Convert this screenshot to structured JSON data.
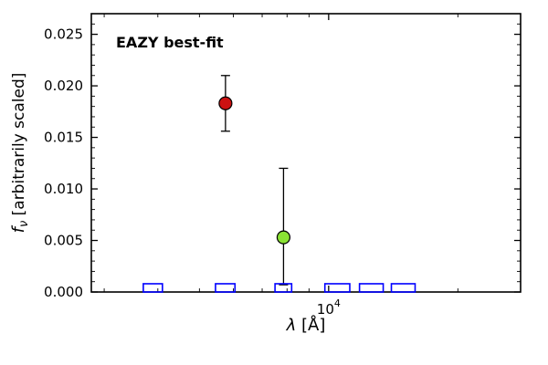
{
  "figure": {
    "background": "#ffffff"
  },
  "chart_data": {
    "type": "scatter",
    "title": "",
    "annotation": {
      "text": "EAZY best-fit",
      "color": "#ee0000"
    },
    "xlabel": {
      "symbol": "λ",
      "unit": "[Å]"
    },
    "ylabel": {
      "symbol": "f",
      "subscript": "ν",
      "rest": "[arbitrarily scaled]"
    },
    "x_scale": "log",
    "xlim": [
      2800,
      28000
    ],
    "ylim": [
      0,
      0.027
    ],
    "yticks": [
      0,
      0.005,
      0.01,
      0.015,
      0.02,
      0.025
    ],
    "ytick_minor_step": 0.001,
    "ytick_decimals": 3,
    "xtick_major": {
      "value": 10000,
      "label_base": "10",
      "label_exp": "4"
    },
    "xtick_minors": [
      3000,
      4000,
      5000,
      6000,
      7000,
      8000,
      9000,
      20000
    ],
    "grid": false,
    "legend": null,
    "series": [
      {
        "name": "photometry-points",
        "type": "errorbar",
        "marker": "circle",
        "edge_color": "#000000",
        "errorbar_color": "#000000",
        "points": [
          {
            "x": 5750,
            "y": 0.0183,
            "yerr_plus": 0.0027,
            "yerr_minus": 0.0027,
            "fill": "#cc1111",
            "label": "red-point"
          },
          {
            "x": 7850,
            "y": 0.0053,
            "yerr_plus": 0.0067,
            "yerr_minus": 0.0046,
            "fill": "#8ae234",
            "label": "green-point"
          }
        ]
      },
      {
        "name": "filter-boxes",
        "type": "open-rect",
        "color": "#0000ff",
        "height": 0.0008,
        "rects": [
          {
            "x_min": 3700,
            "x_max": 4100
          },
          {
            "x_min": 5450,
            "x_max": 6050
          },
          {
            "x_min": 7500,
            "x_max": 8200
          },
          {
            "x_min": 9800,
            "x_max": 11200
          },
          {
            "x_min": 11800,
            "x_max": 13400
          },
          {
            "x_min": 14000,
            "x_max": 15900
          }
        ]
      }
    ]
  }
}
